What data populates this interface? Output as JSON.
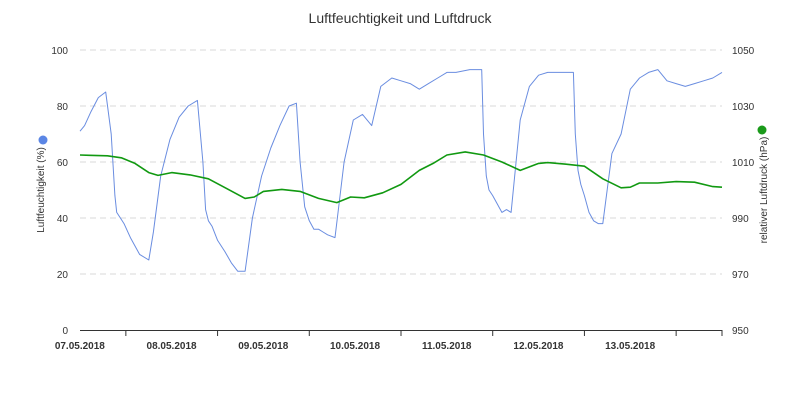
{
  "chart_data": {
    "type": "line",
    "title": "Luftfeuchtigkeit und Luftdruck",
    "y_left": {
      "label": "Luftfeuchtigkeit (%)",
      "lim": [
        0,
        100
      ],
      "ticks": [
        "0",
        "20",
        "40",
        "60",
        "80",
        "100"
      ]
    },
    "y_right": {
      "label": "relativer Luftdruck (hPa)",
      "lim": [
        950,
        1050
      ],
      "ticks": [
        "950",
        "970",
        "990",
        "1010",
        "1030",
        "1050"
      ]
    },
    "x": {
      "lim": [
        6.5,
        13.5
      ],
      "tick_values": [
        7,
        8,
        9,
        10,
        11,
        12,
        13
      ],
      "tick_labels": [
        "07.05.2018",
        "08.05.2018",
        "09.05.2018",
        "10.05.2018",
        "11.05.2018",
        "12.05.2018",
        "13.05.2018"
      ]
    },
    "grid": true,
    "series": [
      {
        "axis": "left",
        "color": "#6a8de0",
        "marker_color": "#5b86e5",
        "x": [
          6.5,
          6.55,
          6.62,
          6.7,
          6.78,
          6.84,
          6.88,
          6.9,
          6.94,
          6.98,
          7.05,
          7.15,
          7.25,
          7.3,
          7.38,
          7.48,
          7.58,
          7.68,
          7.78,
          7.84,
          7.87,
          7.9,
          7.94,
          8.0,
          8.08,
          8.15,
          8.22,
          8.3,
          8.38,
          8.48,
          8.58,
          8.68,
          8.78,
          8.86,
          8.9,
          8.95,
          9.0,
          9.05,
          9.1,
          9.15,
          9.2,
          9.28,
          9.38,
          9.48,
          9.58,
          9.68,
          9.78,
          9.9,
          10.0,
          10.1,
          10.2,
          10.3,
          10.4,
          10.5,
          10.6,
          10.75,
          10.88,
          10.9,
          10.93,
          10.96,
          11.0,
          11.05,
          11.1,
          11.15,
          11.2,
          11.3,
          11.4,
          11.5,
          11.6,
          11.75,
          11.88,
          11.9,
          11.93,
          11.96,
          12.0,
          12.05,
          12.1,
          12.15,
          12.2,
          12.3,
          12.4,
          12.5,
          12.6,
          12.7,
          12.8,
          12.9,
          13.0,
          13.1,
          13.2,
          13.3,
          13.4,
          13.5
        ],
        "values": [
          71,
          73,
          78,
          83,
          85,
          70,
          48,
          42,
          40,
          38,
          33,
          27,
          25,
          35,
          55,
          68,
          76,
          80,
          82,
          60,
          43,
          39,
          37,
          32,
          28,
          24,
          21,
          21,
          40,
          55,
          65,
          73,
          80,
          81,
          60,
          44,
          39,
          36,
          36,
          35,
          34,
          33,
          60,
          75,
          77,
          73,
          87,
          90,
          89,
          88,
          86,
          88,
          90,
          92,
          92,
          93,
          93,
          70,
          55,
          50,
          48,
          45,
          42,
          43,
          42,
          75,
          87,
          91,
          92,
          92,
          92,
          70,
          57,
          52,
          48,
          42,
          39,
          38,
          38,
          63,
          70,
          86,
          90,
          92,
          93,
          89,
          88,
          87,
          88,
          89,
          90,
          92
        ]
      },
      {
        "axis": "right",
        "color": "#119911",
        "marker_color": "#1a9a1a",
        "x": [
          6.5,
          6.6,
          6.8,
          6.95,
          7.1,
          7.25,
          7.35,
          7.5,
          7.7,
          7.9,
          8.1,
          8.3,
          8.4,
          8.5,
          8.7,
          8.9,
          9.1,
          9.3,
          9.45,
          9.6,
          9.8,
          10.0,
          10.2,
          10.35,
          10.5,
          10.7,
          10.9,
          11.1,
          11.3,
          11.5,
          11.6,
          11.8,
          12.0,
          12.2,
          12.4,
          12.5,
          12.6,
          12.8,
          13.0,
          13.2,
          13.4,
          13.5
        ],
        "values": [
          1012.5,
          1012.4,
          1012.2,
          1011.5,
          1009.5,
          1006.2,
          1005.2,
          1006.2,
          1005.4,
          1004.0,
          1000.5,
          997.0,
          997.5,
          999.5,
          1000.2,
          999.5,
          997.0,
          995.5,
          997.5,
          997.2,
          999.0,
          1002.0,
          1007.0,
          1009.5,
          1012.5,
          1013.6,
          1012.5,
          1010.0,
          1007.0,
          1009.5,
          1009.8,
          1009.2,
          1008.5,
          1004.0,
          1000.8,
          1001.0,
          1002.5,
          1002.5,
          1003.0,
          1002.8,
          1001.2,
          1001.0
        ]
      }
    ]
  }
}
